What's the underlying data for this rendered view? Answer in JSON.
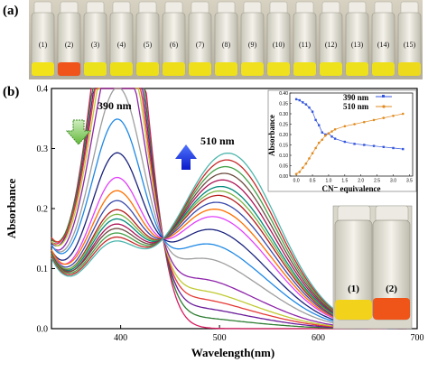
{
  "panel_a": {
    "label": "(a)",
    "vial_labels": [
      "(1)",
      "(2)",
      "(3)",
      "(4)",
      "(5)",
      "(6)",
      "(7)",
      "(8)",
      "(9)",
      "(10)",
      "(11)",
      "(12)",
      "(13)",
      "(14)",
      "(15)"
    ],
    "vial_colors": [
      "#f2e21a",
      "#f0541a",
      "#ece21c",
      "#ecdf18",
      "#eddf17",
      "#eede19",
      "#efdf1a",
      "#efe01c",
      "#f0e01e",
      "#efe11d",
      "#efe21d",
      "#eee21c",
      "#ede11b",
      "#ede01b",
      "#eeda1c"
    ]
  },
  "panel_b": {
    "label": "(b)",
    "inset_photo": {
      "labels": [
        "(1)",
        "(2)"
      ],
      "colors": [
        "#f2d21a",
        "#ef5418"
      ]
    }
  },
  "chart_data": [
    {
      "type": "line",
      "title": "",
      "xlabel": "Wavelength(nm)",
      "ylabel": "Absorbance",
      "xlim": [
        330,
        700
      ],
      "ylim": [
        0,
        0.4
      ],
      "xticks": [
        400,
        500,
        600,
        700
      ],
      "yticks": [
        0.0,
        0.1,
        0.2,
        0.3,
        0.4
      ],
      "annotations": [
        {
          "text": "390 nm",
          "arrow": "down",
          "arrow_color": "#7ec850"
        },
        {
          "text": "510 nm",
          "arrow": "up",
          "arrow_color": "#1e3ce8"
        }
      ],
      "isosbestic_point": {
        "x": 443,
        "y": 0.15
      },
      "series": [
        {
          "color": "#d81b60",
          "peak390": 0.37,
          "peak510": 0.0,
          "tail": 0.11
        },
        {
          "color": "#2e7d32",
          "peak390": 0.365,
          "peak510": 0.01,
          "tail": 0.115
        },
        {
          "color": "#6a1b9a",
          "peak390": 0.355,
          "peak510": 0.02,
          "tail": 0.11
        },
        {
          "color": "#e53935",
          "peak390": 0.345,
          "peak510": 0.03,
          "tail": 0.12
        },
        {
          "color": "#c0ca33",
          "peak390": 0.33,
          "peak510": 0.04,
          "tail": 0.115
        },
        {
          "color": "#8e24aa",
          "peak390": 0.31,
          "peak510": 0.055,
          "tail": 0.11
        },
        {
          "color": "#9e9e9e",
          "peak390": 0.27,
          "peak510": 0.085,
          "tail": 0.115
        },
        {
          "color": "#1e88e5",
          "peak390": 0.245,
          "peak510": 0.11,
          "tail": 0.118
        },
        {
          "color": "#1a237e",
          "peak390": 0.21,
          "peak510": 0.135,
          "tail": 0.112
        },
        {
          "color": "#e040fb",
          "peak390": 0.185,
          "peak510": 0.16,
          "tail": 0.11
        },
        {
          "color": "#ff6f00",
          "peak390": 0.17,
          "peak510": 0.175,
          "tail": 0.116
        },
        {
          "color": "#3949ab",
          "peak390": 0.16,
          "peak510": 0.19,
          "tail": 0.112
        },
        {
          "color": "#b71c1c",
          "peak390": 0.15,
          "peak510": 0.205,
          "tail": 0.11
        },
        {
          "color": "#7cb342",
          "peak390": 0.145,
          "peak510": 0.215,
          "tail": 0.114
        },
        {
          "color": "#00897b",
          "peak390": 0.14,
          "peak510": 0.225,
          "tail": 0.112
        },
        {
          "color": "#ad1457",
          "peak390": 0.135,
          "peak510": 0.24,
          "tail": 0.11
        },
        {
          "color": "#6d4c41",
          "peak390": 0.13,
          "peak510": 0.255,
          "tail": 0.115
        },
        {
          "color": "#43a047",
          "peak390": 0.125,
          "peak510": 0.27,
          "tail": 0.112
        },
        {
          "color": "#c62828",
          "peak390": 0.12,
          "peak510": 0.285,
          "tail": 0.11
        },
        {
          "color": "#4db6ac",
          "peak390": 0.115,
          "peak510": 0.3,
          "tail": 0.108
        }
      ]
    },
    {
      "type": "line",
      "title": "",
      "xlabel": "CN⁻ equivalence",
      "ylabel": "Absorbance",
      "xlim": [
        -0.2,
        3.6
      ],
      "ylim": [
        0,
        0.4
      ],
      "xticks": [
        "0.0",
        "0.5",
        "1.0",
        "1.5",
        "2.0",
        "2.5",
        "3.0",
        "3.5"
      ],
      "yticks": [
        "0.00",
        "0.05",
        "0.10",
        "0.15",
        "0.20",
        "0.25",
        "0.30",
        "0.35",
        "0.40"
      ],
      "legend_position": "top-right",
      "series": [
        {
          "name": "390 nm",
          "color": "#3355dd",
          "x": [
            0,
            0.1,
            0.2,
            0.3,
            0.4,
            0.5,
            0.6,
            0.7,
            0.8,
            0.9,
            1.0,
            1.1,
            1.2,
            1.5,
            1.8,
            2.1,
            2.4,
            2.7,
            3.0,
            3.3
          ],
          "y": [
            0.37,
            0.365,
            0.355,
            0.345,
            0.33,
            0.31,
            0.27,
            0.245,
            0.21,
            0.2,
            0.205,
            0.19,
            0.18,
            0.165,
            0.155,
            0.15,
            0.145,
            0.14,
            0.135,
            0.13
          ]
        },
        {
          "name": "510 nm",
          "color": "#e08a1e",
          "x": [
            0,
            0.1,
            0.2,
            0.3,
            0.4,
            0.5,
            0.6,
            0.7,
            0.8,
            0.9,
            1.0,
            1.1,
            1.2,
            1.5,
            1.8,
            2.1,
            2.4,
            2.7,
            3.0,
            3.3
          ],
          "y": [
            0.01,
            0.02,
            0.04,
            0.06,
            0.085,
            0.11,
            0.135,
            0.16,
            0.175,
            0.195,
            0.205,
            0.215,
            0.225,
            0.24,
            0.25,
            0.26,
            0.27,
            0.28,
            0.29,
            0.3
          ]
        }
      ]
    }
  ]
}
